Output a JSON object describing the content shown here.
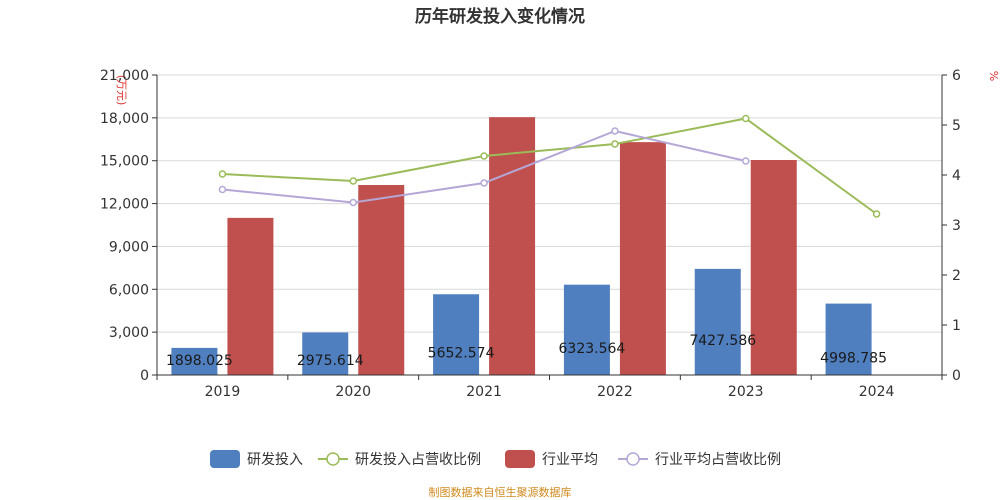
{
  "chart_data": {
    "type": "bar",
    "title": "历年研发投入变化情况",
    "categories": [
      "2019",
      "2020",
      "2021",
      "2022",
      "2023",
      "2024"
    ],
    "y_left": {
      "unit": "(万元)",
      "ylim": [
        0,
        21000
      ],
      "ticks": [
        "0",
        "3,000",
        "6,000",
        "9,000",
        "12,000",
        "15,000",
        "18,000",
        "21,000"
      ],
      "tick_values": [
        0,
        3000,
        6000,
        9000,
        12000,
        15000,
        18000,
        21000
      ]
    },
    "y_right": {
      "unit": "%",
      "ylim": [
        0,
        6
      ],
      "ticks": [
        "0",
        "1",
        "2",
        "3",
        "4",
        "5",
        "6"
      ],
      "tick_values": [
        0,
        1,
        2,
        3,
        4,
        5,
        6
      ]
    },
    "series": [
      {
        "name": "研发投入",
        "kind": "bar",
        "axis": "left",
        "color": "#4f7fbf",
        "values": [
          1898.025,
          2975.614,
          5652.574,
          6323.564,
          7427.586,
          4998.785
        ],
        "labels": [
          "1898.025",
          "2975.614",
          "5652.574",
          "6323.564",
          "7427.586",
          "4998.785"
        ]
      },
      {
        "name": "研发投入占营收比例",
        "kind": "line",
        "axis": "right",
        "color": "#9bbb59",
        "values": [
          4.02,
          3.88,
          4.38,
          4.62,
          5.13,
          3.22
        ]
      },
      {
        "name": "行业平均",
        "kind": "bar",
        "axis": "left",
        "color": "#c0504d",
        "values": [
          11000,
          13300,
          18050,
          16300,
          15050,
          null
        ]
      },
      {
        "name": "行业平均占营收比例",
        "kind": "line",
        "axis": "right",
        "color": "#b4a7d6",
        "values": [
          3.71,
          3.45,
          3.84,
          4.88,
          4.28,
          null
        ]
      }
    ],
    "grid": true,
    "legend": "bottom-center"
  },
  "source": "制图数据来自恒生聚源数据库"
}
